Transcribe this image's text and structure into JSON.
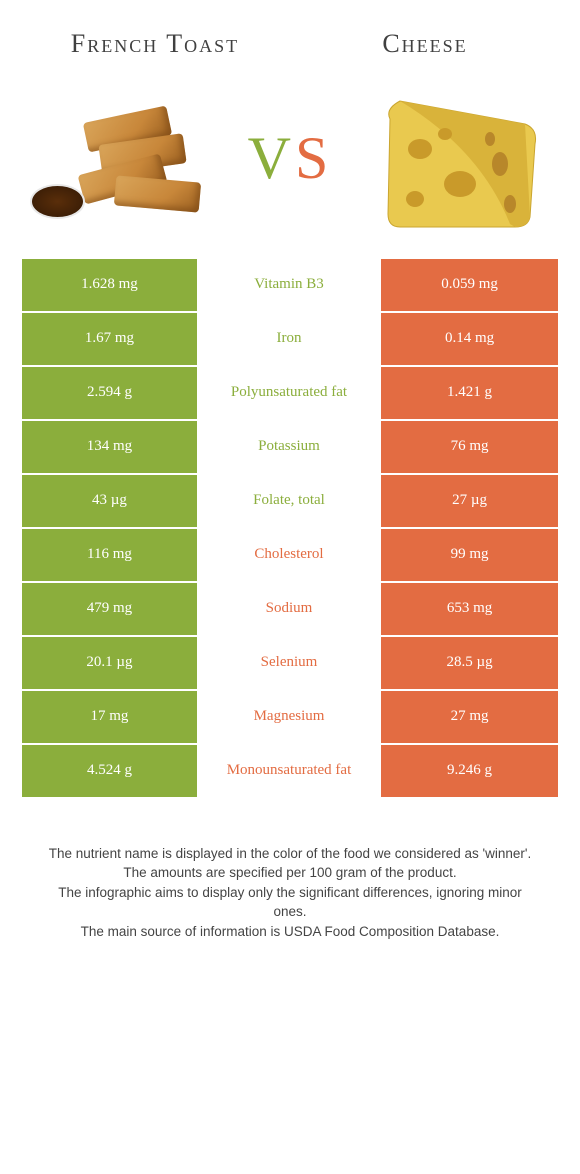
{
  "colors": {
    "left": "#8BAE3C",
    "right": "#E36C42",
    "left_text_on_white": "#8BAE3C",
    "right_text_on_white": "#E36C42"
  },
  "header": {
    "left_title": "French Toast",
    "right_title": "Cheese",
    "vs_v": "V",
    "vs_s": "S"
  },
  "rows": [
    {
      "left": "1.628 mg",
      "label": "Vitamin B3",
      "right": "0.059 mg",
      "winner": "left"
    },
    {
      "left": "1.67 mg",
      "label": "Iron",
      "right": "0.14 mg",
      "winner": "left"
    },
    {
      "left": "2.594 g",
      "label": "Polyunsaturated fat",
      "right": "1.421 g",
      "winner": "left"
    },
    {
      "left": "134 mg",
      "label": "Potassium",
      "right": "76 mg",
      "winner": "left"
    },
    {
      "left": "43 µg",
      "label": "Folate, total",
      "right": "27 µg",
      "winner": "left"
    },
    {
      "left": "116 mg",
      "label": "Cholesterol",
      "right": "99 mg",
      "winner": "right"
    },
    {
      "left": "479 mg",
      "label": "Sodium",
      "right": "653 mg",
      "winner": "right"
    },
    {
      "left": "20.1 µg",
      "label": "Selenium",
      "right": "28.5 µg",
      "winner": "right"
    },
    {
      "left": "17 mg",
      "label": "Magnesium",
      "right": "27 mg",
      "winner": "right"
    },
    {
      "left": "4.524 g",
      "label": "Monounsaturated fat",
      "right": "9.246 g",
      "winner": "right"
    }
  ],
  "footer": {
    "line1": "The nutrient name is displayed in the color of the food we considered as 'winner'.",
    "line2": "The amounts are specified per 100 gram of the product.",
    "line3": "The infographic aims to display only the significant differences, ignoring minor ones.",
    "line4": "The main source of information is USDA Food Composition Database."
  }
}
